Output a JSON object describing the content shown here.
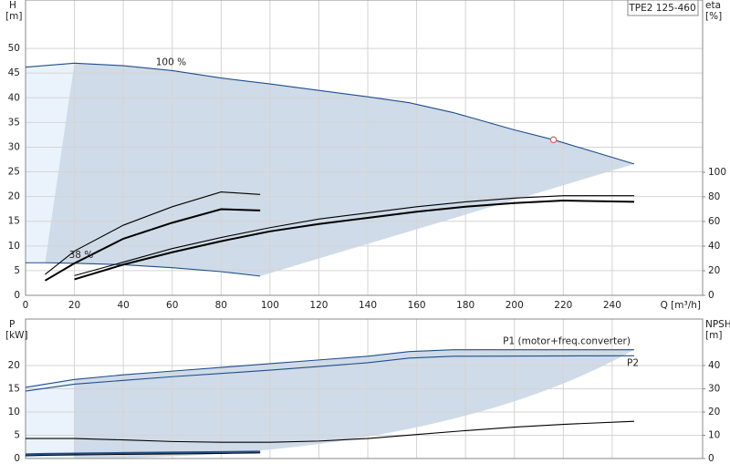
{
  "chart_data": [
    {
      "type": "line",
      "title": "TPE2 125-460",
      "xlabel": "Q [m³/h]",
      "ylabel": "H",
      "yunit": "[m]",
      "y2label": "eta",
      "y2unit": "[%]",
      "xlim": [
        0,
        277
      ],
      "xticks": [
        0,
        20,
        40,
        60,
        80,
        100,
        120,
        140,
        160,
        180,
        200,
        220,
        240
      ],
      "ylim": [
        0,
        59.8
      ],
      "yticks": [
        0,
        5,
        10,
        15,
        20,
        25,
        30,
        35,
        40,
        45,
        50
      ],
      "y2lim": [
        0,
        240
      ],
      "y2ticks": [
        0,
        20,
        40,
        60,
        80,
        100
      ],
      "grid": true,
      "shaded": true,
      "series": [
        {
          "name": "100 %",
          "color": "#1f4e8c",
          "line": "thin",
          "x": [
            0,
            20,
            40,
            60,
            80,
            100,
            120,
            140,
            157,
            175,
            200,
            216,
            249
          ],
          "values": [
            46.2,
            47,
            46.5,
            45.5,
            44,
            42.8,
            41.5,
            40.2,
            39,
            37,
            33.5,
            31.5,
            26.6
          ]
        },
        {
          "name": "38 %",
          "color": "#1f4e8c",
          "line": "thin",
          "x": [
            0,
            8,
            20,
            40,
            60,
            80,
            96
          ],
          "values": [
            6.6,
            6.6,
            6.5,
            6.2,
            5.6,
            4.8,
            3.9
          ]
        },
        {
          "color": "#000000",
          "line": "thin",
          "axis": "y2",
          "x": [
            20,
            40,
            60,
            80,
            100,
            120,
            140,
            160,
            180,
            200,
            220,
            249
          ],
          "values": [
            16,
            27,
            38,
            47,
            55,
            62,
            67,
            72,
            76,
            79,
            81,
            81
          ]
        },
        {
          "color": "#000000",
          "line": "thick",
          "axis": "y2",
          "x": [
            20,
            40,
            60,
            80,
            100,
            120,
            140,
            160,
            180,
            200,
            220,
            249
          ],
          "values": [
            13,
            25,
            35,
            44,
            52,
            58,
            63,
            68,
            72,
            75,
            77,
            76
          ]
        },
        {
          "color": "#000000",
          "line": "thin",
          "axis": "y2",
          "x": [
            8,
            20,
            40,
            60,
            80,
            96
          ],
          "values": [
            17,
            36,
            57,
            72,
            84,
            82
          ]
        },
        {
          "color": "#000000",
          "line": "thick",
          "axis": "y2",
          "x": [
            8,
            20,
            40,
            60,
            80,
            96
          ],
          "values": [
            12,
            26,
            46,
            59,
            70,
            69
          ]
        }
      ],
      "operating_point": {
        "x": 216,
        "y": 31.5,
        "color": "#e06060"
      }
    },
    {
      "type": "line",
      "ylabel": "P",
      "yunit": "[kW]",
      "y2label": "NPSH",
      "y2unit": "[m]",
      "xlim": [
        0,
        277
      ],
      "ylim": [
        0,
        30
      ],
      "yticks": [
        0,
        5,
        10,
        15,
        20
      ],
      "y2lim": [
        0,
        60
      ],
      "y2ticks": [
        0,
        10,
        20,
        30,
        40
      ],
      "grid": true,
      "shaded": true,
      "series": [
        {
          "name": "P1 (motor+freq.converter)",
          "color": "#1f4e8c",
          "line": "thin",
          "x": [
            0,
            20,
            40,
            60,
            80,
            100,
            120,
            140,
            157,
            175,
            249
          ],
          "values": [
            15.3,
            17,
            18,
            18.8,
            19.6,
            20.4,
            21.2,
            22,
            23,
            23.4,
            23.4
          ]
        },
        {
          "name": "P2",
          "color": "#1f4e8c",
          "line": "thin",
          "x": [
            0,
            20,
            40,
            60,
            80,
            100,
            120,
            140,
            157,
            175,
            249
          ],
          "values": [
            14.5,
            16,
            16.8,
            17.6,
            18.3,
            19,
            19.8,
            20.6,
            21.6,
            22,
            22.1
          ]
        },
        {
          "color": "#000000",
          "line": "thin",
          "axis": "y2",
          "x": [
            0,
            20,
            40,
            60,
            80,
            100,
            120,
            140,
            160,
            180,
            200,
            220,
            249
          ],
          "values": [
            8.6,
            8.6,
            8,
            7.3,
            7,
            7,
            7.5,
            8.6,
            10.3,
            12,
            13.5,
            14.7,
            16
          ]
        },
        {
          "color": "#1f4e8c",
          "line": "thick",
          "x": [
            0,
            8,
            40,
            80,
            96
          ],
          "values": [
            0.9,
            1,
            1.2,
            1.4,
            1.5
          ]
        },
        {
          "color": "#000000",
          "line": "thin",
          "x": [
            0,
            8,
            40,
            80,
            96
          ],
          "values": [
            0.6,
            0.7,
            0.9,
            1.1,
            1.2
          ]
        }
      ]
    }
  ]
}
